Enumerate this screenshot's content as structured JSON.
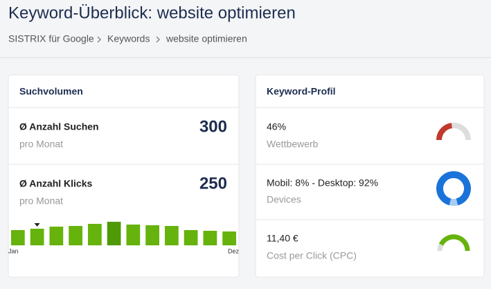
{
  "header": {
    "title": "Keyword-Überblick: website optimieren",
    "breadcrumb": [
      "SISTRIX für Google",
      "Keywords",
      "website optimieren"
    ]
  },
  "search_volume": {
    "title": "Suchvolumen",
    "rows": [
      {
        "label": "Ø Anzahl Suchen",
        "sub": "pro Monat",
        "value": 300
      },
      {
        "label": "Ø Anzahl Klicks",
        "sub": "pro Monat",
        "value": 250
      }
    ]
  },
  "chart_data": {
    "type": "bar",
    "categories": [
      "Jan",
      null,
      null,
      null,
      null,
      null,
      null,
      null,
      null,
      null,
      null,
      "Dez"
    ],
    "values": [
      22,
      24,
      27,
      28,
      31,
      34,
      30,
      29,
      28,
      22,
      21,
      20
    ],
    "ylim": [
      0,
      34
    ],
    "color": "#66b30d",
    "highlight_color": "#4e9a06",
    "highlight_index": 5,
    "marker_index": 1
  },
  "profile": {
    "title": "Keyword-Profil",
    "competition": {
      "value": 46,
      "label": "46%",
      "caption": "Wettbewerb",
      "color": "#c0392b"
    },
    "devices": {
      "mobile": 8,
      "desktop": 92,
      "label": "Mobil: 8% - Desktop: 92%",
      "caption": "Devices",
      "mobile_color": "#a9cdf2",
      "desktop_color": "#1a73d9"
    },
    "cpc": {
      "label": "11,40 €",
      "caption": "Cost per Click (CPC)"
    }
  }
}
